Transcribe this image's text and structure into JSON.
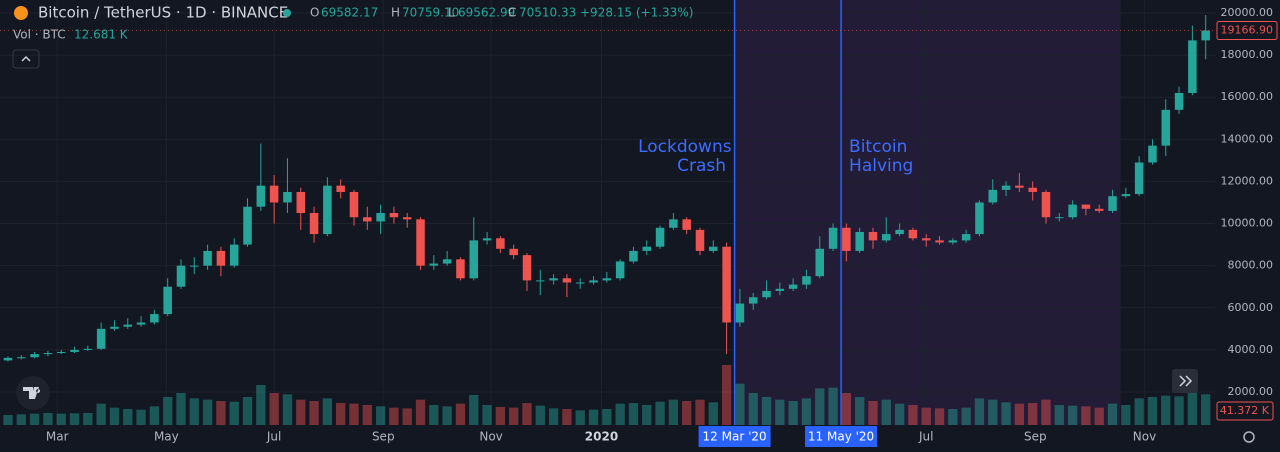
{
  "chart_data": {
    "type": "candlestick",
    "title": "Bitcoin / TetherUS · 1D · BINANCE",
    "legend": {
      "o_label": "O",
      "o": "69582.17",
      "h_label": "H",
      "h": "70759.10",
      "l_label": "L",
      "l": "69562.99",
      "c_label": "C",
      "c": "70510.33",
      "change": "+928.15 (+1.33%)"
    },
    "volume_title": "Vol · BTC",
    "volume_value": "12.681 K",
    "up_color": "#26a69a",
    "down_color": "#ef5350",
    "open": [
      3500,
      3620,
      3650,
      3800,
      3850,
      3900,
      4000,
      4050,
      5000,
      5100,
      5200,
      5300,
      5700,
      7000,
      8000,
      8000,
      8700,
      8000,
      9000,
      10800,
      11800,
      11000,
      11500,
      10500,
      9500,
      11800,
      11500,
      10300,
      10100,
      10500,
      10300,
      10200,
      8000,
      8100,
      8300,
      7400,
      9200,
      9300,
      8800,
      8500,
      7300,
      7300,
      7400,
      7200,
      7200,
      7300,
      7400,
      8200,
      8700,
      8900,
      9800,
      10200,
      9700,
      8700,
      8900,
      5300,
      6200,
      6500,
      6800,
      6900,
      7100,
      7500,
      8800,
      9800,
      8700,
      9600,
      9200,
      9500,
      9700,
      9300,
      9200,
      9100,
      9200,
      9500,
      11000,
      11600,
      11800,
      11700,
      11500,
      10300,
      10300,
      10900,
      10700,
      10600,
      11300,
      11400,
      12900,
      13700,
      15400,
      16200,
      18700
    ],
    "high": [
      3700,
      3750,
      3900,
      3950,
      4000,
      4150,
      4200,
      5300,
      5400,
      5500,
      5600,
      5900,
      7400,
      8300,
      8400,
      9000,
      8900,
      9300,
      11200,
      13800,
      12300,
      13100,
      11700,
      10800,
      12200,
      12100,
      11600,
      10800,
      10900,
      10800,
      10500,
      10300,
      8500,
      8700,
      8400,
      10300,
      9600,
      9400,
      9000,
      8600,
      7800,
      7600,
      7600,
      7400,
      7500,
      7700,
      8300,
      8900,
      9200,
      9900,
      10500,
      10300,
      9800,
      9200,
      9100,
      6900,
      6700,
      7300,
      7200,
      7400,
      7800,
      9400,
      10000,
      10000,
      9800,
      9800,
      10300,
      10000,
      9800,
      9500,
      9400,
      9300,
      9700,
      11100,
      12100,
      12000,
      12400,
      12000,
      11600,
      10500,
      11100,
      10900,
      10900,
      11600,
      11700,
      13200,
      14000,
      15900,
      16500,
      19400,
      19900
    ],
    "low": [
      3450,
      3550,
      3600,
      3700,
      3800,
      3850,
      3950,
      4000,
      4900,
      5000,
      5100,
      5200,
      5600,
      6900,
      7600,
      7800,
      7500,
      7900,
      8900,
      10600,
      10000,
      10500,
      9700,
      9100,
      9400,
      11200,
      9900,
      9700,
      9500,
      10000,
      9800,
      7800,
      7800,
      8000,
      7300,
      7300,
      9000,
      8600,
      8300,
      6800,
      6600,
      7100,
      6500,
      6900,
      7100,
      7200,
      7300,
      8100,
      8500,
      8800,
      9700,
      9500,
      8500,
      8600,
      3800,
      5100,
      5900,
      6400,
      6600,
      6800,
      6900,
      7400,
      8700,
      8200,
      8600,
      8800,
      9100,
      9400,
      9200,
      8900,
      9000,
      9000,
      9100,
      9400,
      10900,
      11300,
      11500,
      11100,
      10000,
      10100,
      10200,
      10400,
      10500,
      10500,
      11200,
      11300,
      12800,
      13200,
      15200,
      16100,
      17800
    ],
    "close": [
      3620,
      3650,
      3800,
      3850,
      3900,
      4000,
      4050,
      5000,
      5100,
      5200,
      5300,
      5700,
      7000,
      8000,
      8000,
      8700,
      8000,
      9000,
      10800,
      11800,
      11000,
      11500,
      10500,
      9500,
      11800,
      11500,
      10300,
      10100,
      10500,
      10300,
      10200,
      8000,
      8100,
      8300,
      7400,
      9200,
      9300,
      8800,
      8500,
      7300,
      7300,
      7400,
      7200,
      7200,
      7300,
      7400,
      8200,
      8700,
      8900,
      9800,
      10200,
      9700,
      8700,
      8900,
      5300,
      6200,
      6500,
      6800,
      6900,
      7100,
      7500,
      8800,
      9800,
      8700,
      9600,
      9200,
      9500,
      9700,
      9300,
      9200,
      9100,
      9200,
      9500,
      11000,
      11600,
      11800,
      11700,
      11500,
      10300,
      10300,
      10900,
      10700,
      10600,
      11300,
      11400,
      12900,
      13700,
      15400,
      16200,
      18700,
      19166.9
    ],
    "volume": [
      150000,
      160000,
      170000,
      180000,
      170000,
      175000,
      180000,
      320000,
      260000,
      240000,
      230000,
      280000,
      420000,
      480000,
      400000,
      380000,
      360000,
      350000,
      420000,
      600000,
      480000,
      460000,
      380000,
      360000,
      400000,
      330000,
      320000,
      300000,
      280000,
      260000,
      250000,
      380000,
      300000,
      280000,
      320000,
      450000,
      300000,
      270000,
      260000,
      330000,
      290000,
      250000,
      240000,
      220000,
      230000,
      240000,
      320000,
      330000,
      300000,
      350000,
      380000,
      360000,
      380000,
      340000,
      900000,
      620000,
      480000,
      420000,
      380000,
      360000,
      400000,
      550000,
      560000,
      480000,
      420000,
      360000,
      380000,
      320000,
      300000,
      260000,
      250000,
      240000,
      260000,
      400000,
      380000,
      340000,
      320000,
      330000,
      380000,
      300000,
      290000,
      280000,
      260000,
      320000,
      300000,
      400000,
      420000,
      440000,
      430000,
      500000,
      460000
    ],
    "xlim": [
      -0.6,
      90.7
    ],
    "xticks": [
      {
        "value": 3.7,
        "label": "Mar"
      },
      {
        "value": 11.9,
        "label": "May"
      },
      {
        "value": 20,
        "label": "Jul"
      },
      {
        "value": 28.2,
        "label": "Sep"
      },
      {
        "value": 36.3,
        "label": "Nov"
      },
      {
        "value": 44.6,
        "label": "2020"
      },
      {
        "value": 69,
        "label": "Jul"
      },
      {
        "value": 77.2,
        "label": "Sep"
      },
      {
        "value": 85.4,
        "label": "Nov"
      }
    ],
    "ylim": [
      432,
      20617
    ],
    "yticks": [
      {
        "value": 2000,
        "label": "2000.00"
      },
      {
        "value": 4000,
        "label": "4000.00"
      },
      {
        "value": 6000,
        "label": "6000.00"
      },
      {
        "value": 8000,
        "label": "8000.00"
      },
      {
        "value": 10000,
        "label": "10000.00"
      },
      {
        "value": 12000,
        "label": "12000.00"
      },
      {
        "value": 14000,
        "label": "14000.00"
      },
      {
        "value": 16000,
        "label": "16000.00"
      },
      {
        "value": 18000,
        "label": "18000.00"
      },
      {
        "value": 20000,
        "label": "20000.00"
      }
    ],
    "grid": true,
    "last_price": {
      "value": 19166.9,
      "label": "19166.90"
    },
    "last_volume_label": "41.372 K",
    "markers": [
      {
        "x": 54.6,
        "label": "12 Mar '20"
      },
      {
        "x": 62.6,
        "label": "11 May '20"
      }
    ],
    "shade": [
      54.6,
      83.6
    ],
    "annotations": [
      {
        "lines": [
          "Lockdowns",
          "Crash"
        ],
        "anchor": "end"
      },
      {
        "lines": [
          "Bitcoin",
          "Halving"
        ],
        "anchor": "start"
      }
    ]
  }
}
